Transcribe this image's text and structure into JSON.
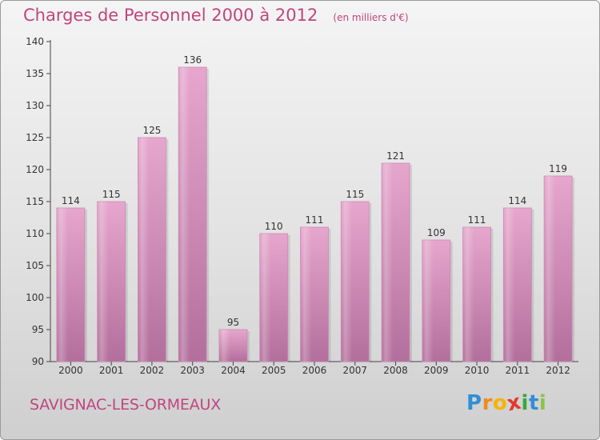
{
  "header": {
    "title": "Charges de Personnel 2000 à 2012",
    "subtitle": "(en milliers d'€)"
  },
  "footer": {
    "commune": "SAVIGNAC-LES-ORMEAUX",
    "brand_letters": [
      "P",
      "r",
      "o",
      "x",
      "i",
      "t",
      "i"
    ],
    "brand_colors": [
      "#2f8fd6",
      "#f08a1c",
      "#f5b400",
      "#e23a2a",
      "#3aa83a",
      "#2f8fd6",
      "#8bc34a"
    ]
  },
  "chart_data": {
    "type": "bar",
    "categories": [
      "2000",
      "2001",
      "2002",
      "2003",
      "2004",
      "2005",
      "2006",
      "2007",
      "2008",
      "2009",
      "2010",
      "2011",
      "2012"
    ],
    "values": [
      114,
      115,
      125,
      136,
      95,
      110,
      111,
      115,
      121,
      109,
      111,
      114,
      119
    ],
    "ylim": [
      90,
      140
    ],
    "yticks": [
      90,
      95,
      100,
      105,
      110,
      115,
      120,
      125,
      130,
      135,
      140
    ],
    "grid": false,
    "colors": {
      "bar_top": "#e6a6cd",
      "bar_bottom": "#b36f9c",
      "text": "#c0457f"
    }
  }
}
